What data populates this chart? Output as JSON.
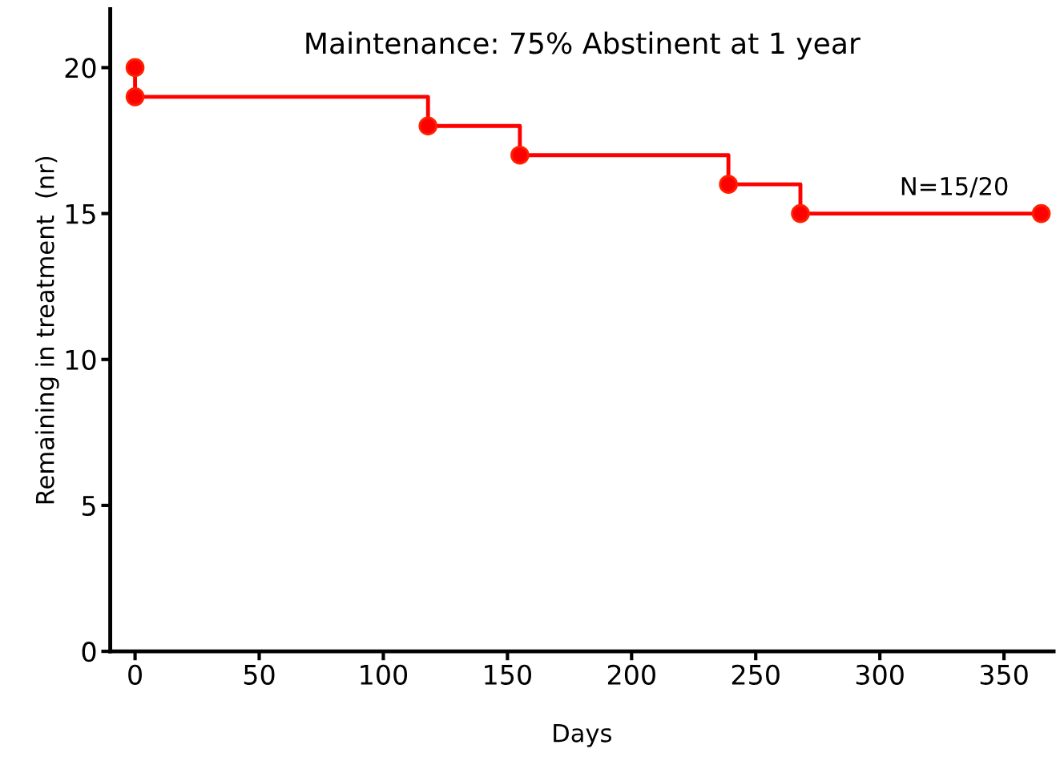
{
  "chart_data": {
    "type": "step",
    "title": "Maintenance: 75% Abstinent at 1 year",
    "xlabel": "Days",
    "ylabel": "Remaining in treatment  (nr)",
    "x": [
      0,
      0,
      118,
      155,
      239,
      268,
      365
    ],
    "series": [
      {
        "color": "#ff0000",
        "values": [
          20,
          19,
          18,
          17,
          16,
          15,
          15
        ]
      }
    ],
    "xlim": [
      -10,
      370
    ],
    "xticks": [
      0,
      50,
      100,
      150,
      200,
      250,
      300,
      350
    ],
    "ylim": [
      0,
      22
    ],
    "yticks": [
      0,
      5,
      10,
      15,
      20
    ],
    "annotations": [
      {
        "text": "N=15/20",
        "x": 330,
        "y": 15
      }
    ],
    "marker": "circle",
    "line_style": "solid",
    "grid": false,
    "legend": false
  }
}
